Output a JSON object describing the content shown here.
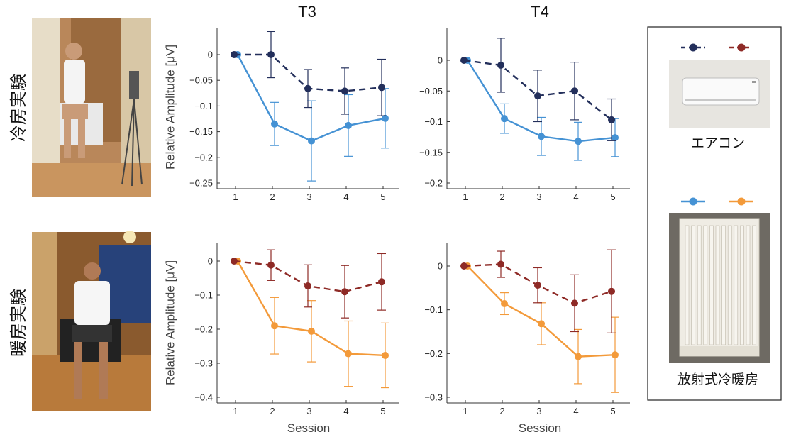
{
  "row_labels": [
    "冷房実験",
    "暖房実験"
  ],
  "column_titles": [
    "T3",
    "T4"
  ],
  "ylabel": "Relative Amplitude [μV]",
  "xlabel": "Session",
  "legend": {
    "captions": [
      "エアコン",
      "放射式冷暖房"
    ],
    "colors": {
      "aircon_cool": "#232f5b",
      "aircon_heat": "#8e2a26",
      "radiant_cool": "#4592d4",
      "radiant_heat": "#f39a3a"
    }
  },
  "chart_data": [
    {
      "type": "line",
      "panel": "cooling-T3",
      "title": "T3",
      "ylabel": "Relative Amplitude [μV]",
      "x": [
        1,
        2,
        3,
        4,
        5
      ],
      "ylim": [
        -0.25,
        0.05
      ],
      "yticks": [
        0,
        -0.05,
        -0.1,
        -0.15,
        -0.2,
        -0.25
      ],
      "yticklabels": [
        "0",
        "−0.05",
        "−0.1",
        "−0.15",
        "−0.2",
        "−0.25"
      ],
      "series": [
        {
          "style": "dashed",
          "color": "#232f5b",
          "values": [
            0,
            0,
            -0.066,
            -0.071,
            -0.064
          ],
          "errors": [
            0,
            0.045,
            0.037,
            0.045,
            0.055
          ]
        },
        {
          "style": "solid",
          "color": "#4592d4",
          "values": [
            0,
            -0.135,
            -0.168,
            -0.138,
            -0.124
          ],
          "errors": [
            0,
            0.042,
            0.078,
            0.06,
            0.058
          ]
        }
      ]
    },
    {
      "type": "line",
      "panel": "cooling-T4",
      "title": "T4",
      "x": [
        1,
        2,
        3,
        4,
        5
      ],
      "ylim": [
        -0.2,
        0.05
      ],
      "yticks": [
        0,
        -0.05,
        -0.1,
        -0.15,
        -0.2
      ],
      "yticklabels": [
        "0",
        "−0.05",
        "−0.1",
        "−0.15",
        "−0.2"
      ],
      "series": [
        {
          "style": "dashed",
          "color": "#232f5b",
          "values": [
            0,
            -0.008,
            -0.058,
            -0.05,
            -0.097
          ],
          "errors": [
            0,
            0.044,
            0.042,
            0.047,
            0.034
          ]
        },
        {
          "style": "solid",
          "color": "#4592d4",
          "values": [
            0,
            -0.095,
            -0.124,
            -0.132,
            -0.126
          ],
          "errors": [
            0,
            0.024,
            0.031,
            0.031,
            0.031
          ]
        }
      ]
    },
    {
      "type": "line",
      "panel": "heating-T3",
      "ylabel": "Relative Amplitude [μV]",
      "xlabel": "Session",
      "x": [
        1,
        2,
        3,
        4,
        5
      ],
      "ylim": [
        -0.4,
        0.05
      ],
      "yticks": [
        0,
        -0.1,
        -0.2,
        -0.3,
        -0.4
      ],
      "yticklabels": [
        "0",
        "−0.1",
        "−0.2",
        "−0.3",
        "−0.4"
      ],
      "series": [
        {
          "style": "dashed",
          "color": "#8e2a26",
          "values": [
            0,
            -0.012,
            -0.073,
            -0.09,
            -0.061
          ],
          "errors": [
            0,
            0.045,
            0.062,
            0.077,
            0.083
          ]
        },
        {
          "style": "solid",
          "color": "#f39a3a",
          "values": [
            0,
            -0.19,
            -0.206,
            -0.272,
            -0.277
          ],
          "errors": [
            0,
            0.083,
            0.09,
            0.096,
            0.095
          ]
        }
      ]
    },
    {
      "type": "line",
      "panel": "heating-T4",
      "xlabel": "Session",
      "x": [
        1,
        2,
        3,
        4,
        5
      ],
      "ylim": [
        -0.3,
        0.05
      ],
      "yticks": [
        0,
        -0.1,
        -0.2,
        -0.3
      ],
      "yticklabels": [
        "0",
        "−0.1",
        "−0.2",
        "−0.3"
      ],
      "series": [
        {
          "style": "dashed",
          "color": "#8e2a26",
          "values": [
            0,
            0.004,
            -0.044,
            -0.085,
            -0.058
          ],
          "errors": [
            0,
            0.03,
            0.04,
            0.065,
            0.095
          ]
        },
        {
          "style": "solid",
          "color": "#f39a3a",
          "values": [
            0,
            -0.086,
            -0.132,
            -0.207,
            -0.203
          ],
          "errors": [
            0,
            0.025,
            0.048,
            0.062,
            0.086
          ]
        }
      ]
    }
  ]
}
